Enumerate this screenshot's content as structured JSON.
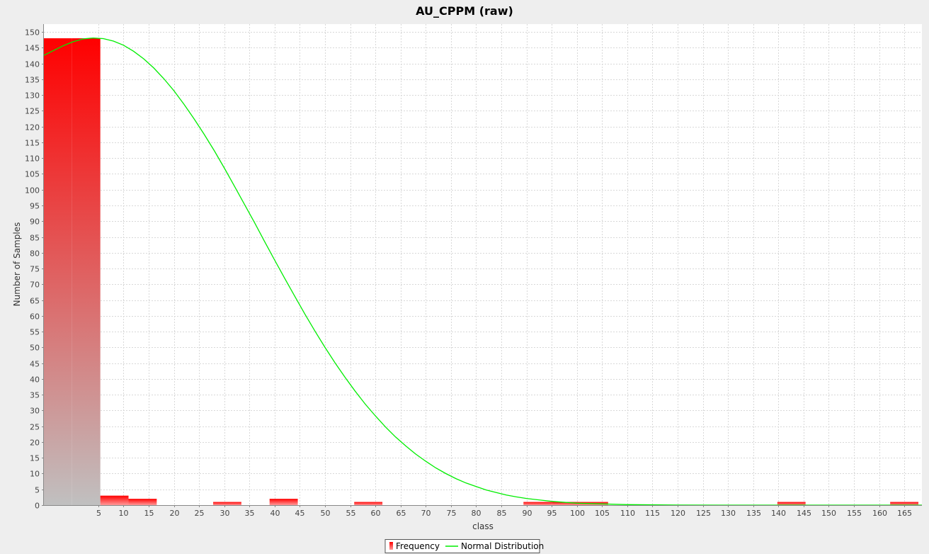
{
  "chart_data": {
    "type": "bar",
    "title": "AU_CPPM (raw)",
    "xlabel": "class",
    "ylabel": "Number of Samples",
    "xlim": [
      -5.8,
      168.5
    ],
    "ylim": [
      0,
      152.5
    ],
    "grid": true,
    "x_ticks": [
      5,
      10,
      15,
      20,
      25,
      30,
      35,
      40,
      45,
      50,
      55,
      60,
      65,
      70,
      75,
      80,
      85,
      90,
      95,
      100,
      105,
      110,
      115,
      120,
      125,
      130,
      135,
      140,
      145,
      150,
      155,
      160,
      165
    ],
    "y_ticks": [
      0,
      5,
      10,
      15,
      20,
      25,
      30,
      35,
      40,
      45,
      50,
      55,
      60,
      65,
      70,
      75,
      80,
      85,
      90,
      95,
      100,
      105,
      110,
      115,
      120,
      125,
      130,
      135,
      140,
      145,
      150
    ],
    "bin_width": 5.6,
    "series": [
      {
        "name": "Frequency",
        "kind": "histogram",
        "color": "#ff0000",
        "bins": [
          {
            "x0": -5.8,
            "x1": -0.2,
            "count": 148
          },
          {
            "x0": -0.2,
            "x1": 5.4,
            "count": 148
          },
          {
            "x0": 5.4,
            "x1": 11.0,
            "count": 3
          },
          {
            "x0": 11.0,
            "x1": 16.6,
            "count": 2
          },
          {
            "x0": 27.8,
            "x1": 33.4,
            "count": 1
          },
          {
            "x0": 39.0,
            "x1": 44.6,
            "count": 2
          },
          {
            "x0": 55.8,
            "x1": 61.4,
            "count": 1
          },
          {
            "x0": 89.4,
            "x1": 95.0,
            "count": 1
          },
          {
            "x0": 95.0,
            "x1": 100.6,
            "count": 1
          },
          {
            "x0": 100.6,
            "x1": 106.2,
            "count": 1
          },
          {
            "x0": 139.8,
            "x1": 145.4,
            "count": 1
          },
          {
            "x0": 162.2,
            "x1": 167.8,
            "count": 1
          }
        ]
      },
      {
        "name": "Normal Distribution",
        "kind": "line",
        "color": "#00ee00",
        "x": [
          -5.8,
          -2,
          0,
          2,
          4,
          6,
          8,
          10,
          12,
          14,
          16,
          18,
          20,
          22,
          24,
          26,
          28,
          30,
          32,
          34,
          36,
          38,
          40,
          42,
          44,
          46,
          48,
          50,
          52,
          54,
          56,
          58,
          60,
          62,
          64,
          66,
          68,
          70,
          72,
          74,
          76,
          78,
          80,
          82,
          84,
          86,
          88,
          90,
          95,
          100,
          110,
          120,
          130,
          140,
          150,
          160,
          168.5
        ],
        "y": [
          142.6,
          145.6,
          146.9,
          147.8,
          148.1,
          147.9,
          147.1,
          145.8,
          143.9,
          141.5,
          138.6,
          135.2,
          131.4,
          127.1,
          122.5,
          117.6,
          112.4,
          106.9,
          101.2,
          95.4,
          89.6,
          83.6,
          77.7,
          71.9,
          66.2,
          60.6,
          55.2,
          50.0,
          45.1,
          40.5,
          36.1,
          32.0,
          28.3,
          24.8,
          21.6,
          18.8,
          16.2,
          13.9,
          11.8,
          10.0,
          8.4,
          7.0,
          5.9,
          4.8,
          4.0,
          3.2,
          2.6,
          2.1,
          1.2,
          0.6,
          0.15,
          0.03,
          0.0,
          0.0,
          0.0,
          0.0,
          0.0
        ]
      }
    ],
    "legend": {
      "position": "bottom",
      "items": [
        "Frequency",
        "Normal Distribution"
      ]
    }
  }
}
